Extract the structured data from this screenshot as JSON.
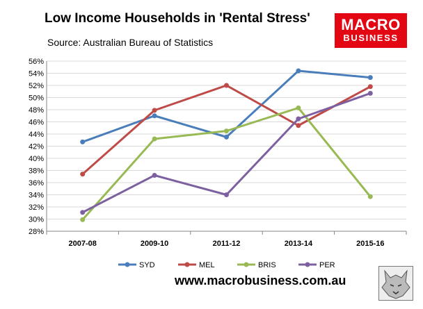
{
  "header": {
    "title": "Low Income Households in 'Rental Stress'",
    "subtitle": "Source: Australian Bureau of Statistics"
  },
  "logo": {
    "line1": "MACRO",
    "line2": "BUSINESS",
    "bg_color": "#e30613"
  },
  "footer": {
    "url": "www.macrobusiness.com.au"
  },
  "chart_data": {
    "type": "line",
    "categories": [
      "2007-08",
      "2009-10",
      "2011-12",
      "2013-14",
      "2015-16"
    ],
    "ylim": [
      28,
      56
    ],
    "ytick_step": 2,
    "ytick_suffix": "%",
    "grid": true,
    "legend_position": "bottom",
    "series": [
      {
        "name": "SYD",
        "color": "#4a7ebb",
        "values": [
          42.7,
          47.0,
          43.5,
          54.4,
          53.3
        ]
      },
      {
        "name": "MEL",
        "color": "#be4b48",
        "values": [
          37.4,
          47.9,
          52.0,
          45.4,
          51.8
        ]
      },
      {
        "name": "BRIS",
        "color": "#98b954",
        "values": [
          29.9,
          43.2,
          44.5,
          48.3,
          33.7
        ]
      },
      {
        "name": "PER",
        "color": "#7d60a0",
        "values": [
          31.1,
          37.2,
          34.0,
          46.5,
          50.7
        ]
      }
    ]
  }
}
